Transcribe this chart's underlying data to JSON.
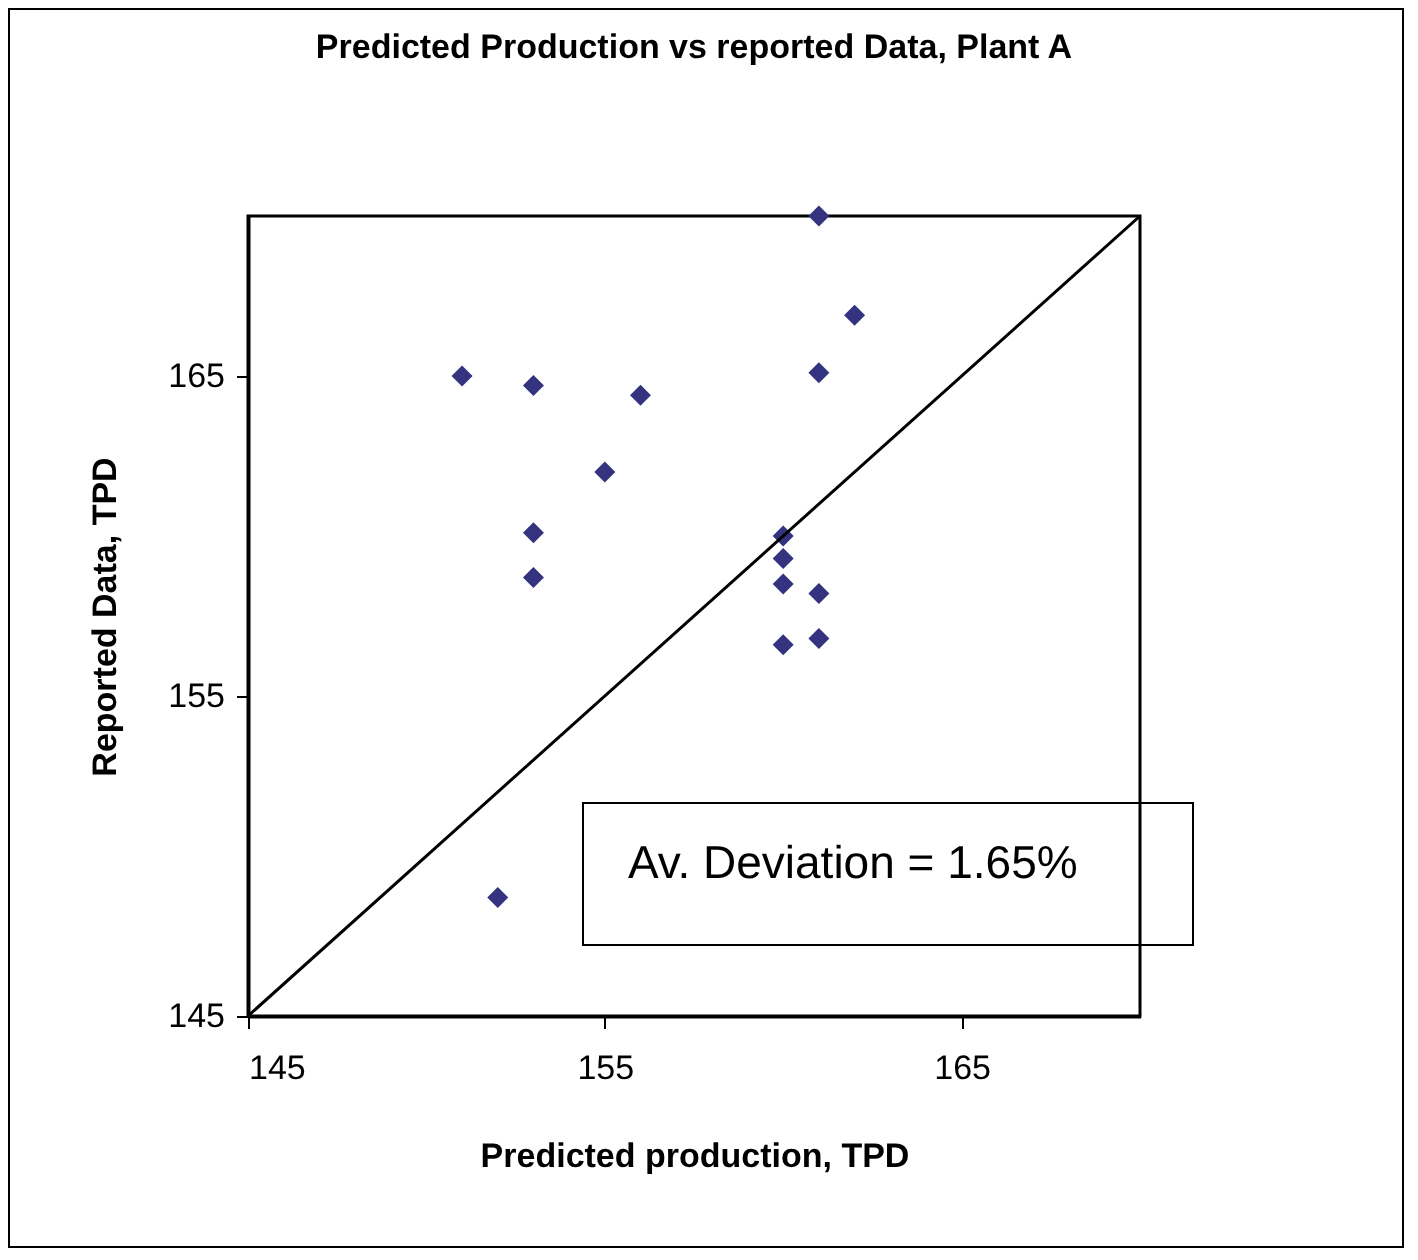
{
  "chart_data": {
    "type": "scatter",
    "title": "Predicted Production vs reported Data, Plant A",
    "xlabel": "Predicted production, TPD",
    "ylabel": "Reported Data, TPD",
    "xlim": [
      145,
      170
    ],
    "xticks": [
      145,
      155,
      165
    ],
    "ylim": [
      145,
      170
    ],
    "yticks": [
      145,
      155,
      165
    ],
    "grid": false,
    "marker": "diamond",
    "series": [
      {
        "color": "#333380",
        "x": [
          151,
          153,
          156,
          155,
          153,
          153,
          161,
          162,
          161,
          160,
          160,
          160,
          161,
          160,
          161,
          152
        ],
        "values": [
          165,
          164.7,
          164.4,
          162,
          160.1,
          158.7,
          170,
          166.9,
          165.1,
          160,
          159.3,
          158.5,
          158.2,
          156.6,
          156.8,
          148.7
        ]
      },
      {
        "type": "line",
        "color": "#000000",
        "marker": "none",
        "line_style": "solid",
        "x": [
          145,
          170
        ],
        "values": [
          145,
          170
        ]
      }
    ],
    "annotations": [
      "Av. Deviation = 1.65%"
    ]
  }
}
